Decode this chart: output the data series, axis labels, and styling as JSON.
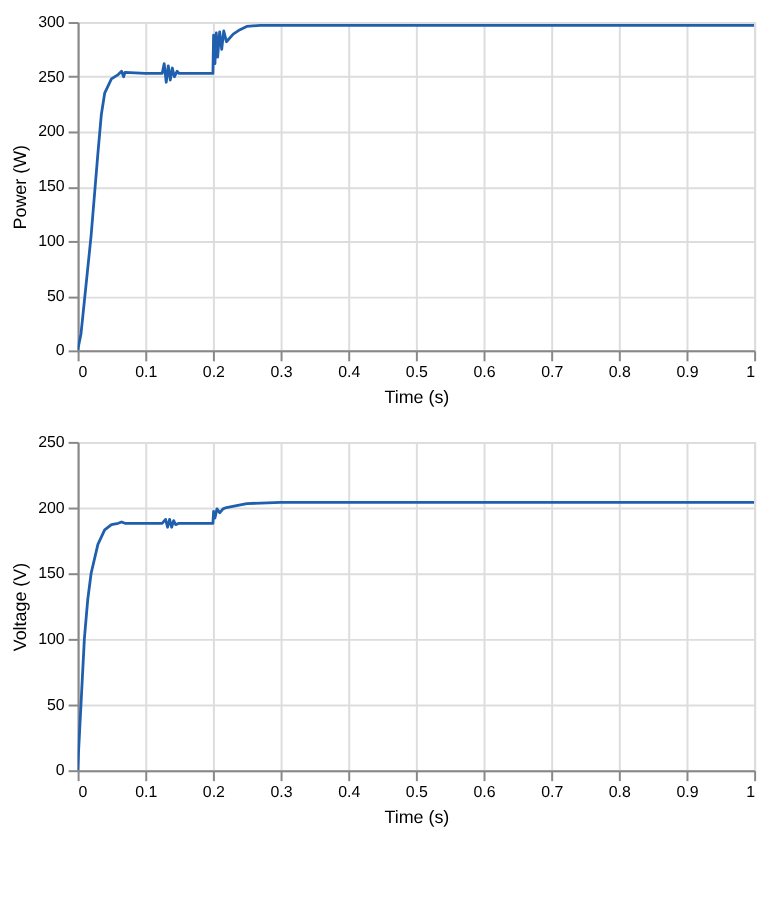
{
  "chart_data": [
    {
      "type": "line",
      "xlabel": "Time (s)",
      "ylabel": "Power (W)",
      "xlim": [
        0,
        1
      ],
      "xticks": [
        0,
        0.1,
        0.2,
        0.3,
        0.4,
        0.5,
        0.6,
        0.7,
        0.8,
        0.9,
        1
      ],
      "ylim": [
        0,
        300
      ],
      "yticks": [
        0,
        50,
        100,
        150,
        200,
        250,
        300
      ],
      "grid": true,
      "marker": "none",
      "line_style": "solid",
      "series": [
        {
          "color": "#1f5fae",
          "x": [
            0,
            0.005,
            0.01,
            0.02,
            0.03,
            0.035,
            0.04,
            0.05,
            0.06,
            0.065,
            0.068,
            0.07,
            0.1,
            0.125,
            0.128,
            0.131,
            0.134,
            0.137,
            0.14,
            0.143,
            0.147,
            0.15,
            0.2,
            0.201,
            0.203,
            0.205,
            0.207,
            0.21,
            0.213,
            0.216,
            0.22,
            0.23,
            0.24,
            0.25,
            0.27,
            0.3,
            1
          ],
          "values": [
            0,
            15,
            45,
            105,
            180,
            215,
            235,
            248,
            252,
            255,
            250,
            254,
            253,
            253,
            262,
            245,
            260,
            247,
            258,
            250,
            255,
            253,
            253,
            288,
            262,
            290,
            268,
            291,
            275,
            292,
            282,
            289,
            293,
            296,
            297,
            297,
            297
          ]
        }
      ]
    },
    {
      "type": "line",
      "xlabel": "Time (s)",
      "ylabel": "Voltage (V)",
      "xlim": [
        0,
        1
      ],
      "xticks": [
        0,
        0.1,
        0.2,
        0.3,
        0.4,
        0.5,
        0.6,
        0.7,
        0.8,
        0.9,
        1
      ],
      "ylim": [
        0,
        250
      ],
      "yticks": [
        0,
        50,
        100,
        150,
        200,
        250
      ],
      "grid": true,
      "marker": "none",
      "line_style": "solid",
      "series": [
        {
          "color": "#1f5fae",
          "x": [
            0,
            0.005,
            0.01,
            0.015,
            0.02,
            0.03,
            0.04,
            0.05,
            0.06,
            0.065,
            0.07,
            0.125,
            0.13,
            0.133,
            0.136,
            0.139,
            0.142,
            0.145,
            0.15,
            0.2,
            0.201,
            0.203,
            0.206,
            0.21,
            0.215,
            0.22,
            0.25,
            0.3,
            1
          ],
          "values": [
            0,
            50,
            100,
            130,
            150,
            172,
            183,
            187,
            188,
            189,
            188,
            188,
            191,
            185,
            191,
            185,
            190,
            187,
            188,
            188,
            197,
            192,
            199,
            196,
            199,
            200,
            203,
            204,
            204
          ]
        }
      ]
    }
  ]
}
